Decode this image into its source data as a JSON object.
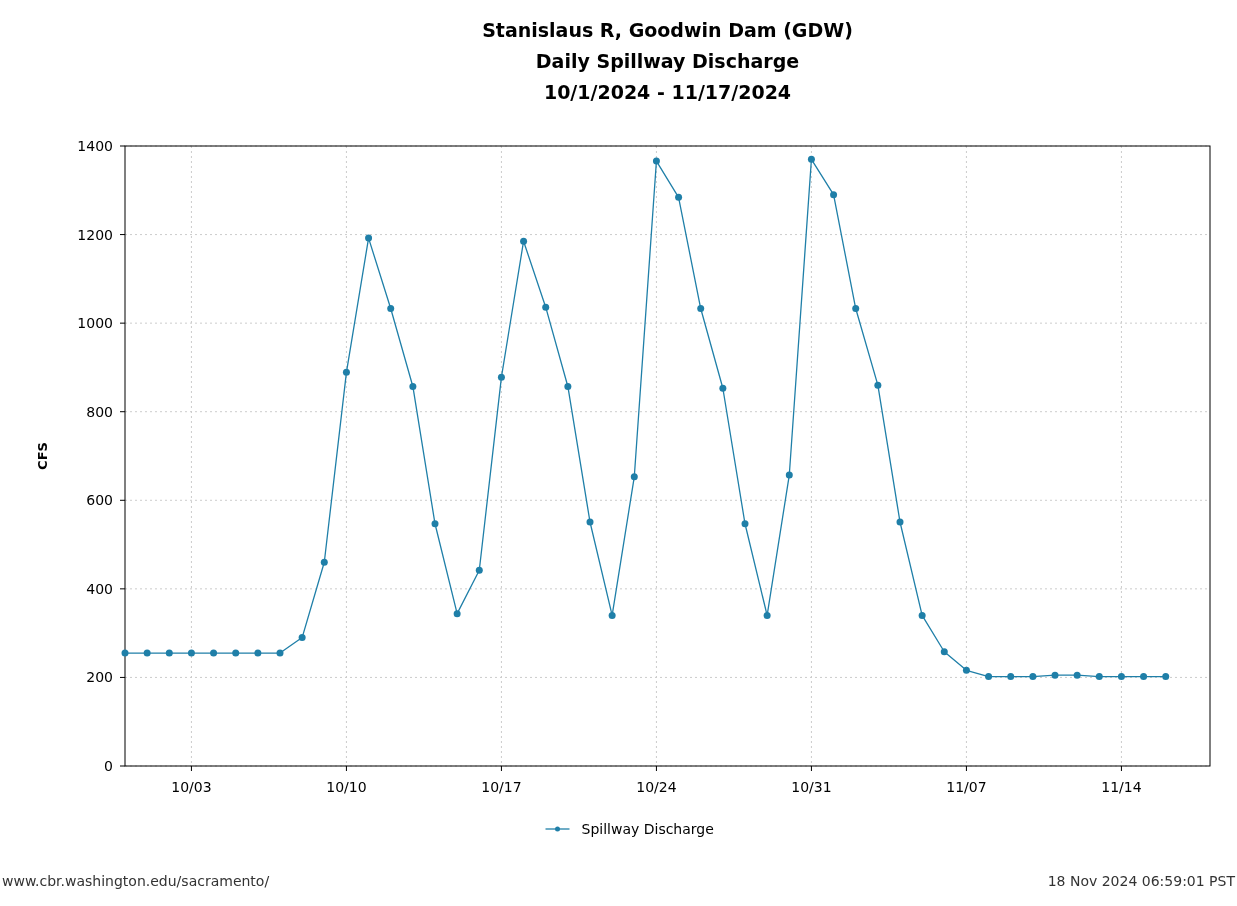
{
  "chart_data": {
    "type": "line",
    "title": "Stanislaus R, Goodwin Dam (GDW)\nDaily Spillway Discharge\n10/1/2024 - 11/17/2024",
    "ylabel": "CFS",
    "x": [
      "2024-09-30",
      "2024-10-01",
      "2024-10-02",
      "2024-10-03",
      "2024-10-04",
      "2024-10-05",
      "2024-10-06",
      "2024-10-07",
      "2024-10-08",
      "2024-10-09",
      "2024-10-10",
      "2024-10-11",
      "2024-10-12",
      "2024-10-13",
      "2024-10-14",
      "2024-10-15",
      "2024-10-16",
      "2024-10-17",
      "2024-10-18",
      "2024-10-19",
      "2024-10-20",
      "2024-10-21",
      "2024-10-22",
      "2024-10-23",
      "2024-10-24",
      "2024-10-25",
      "2024-10-26",
      "2024-10-27",
      "2024-10-28",
      "2024-10-29",
      "2024-10-30",
      "2024-10-31",
      "2024-11-01",
      "2024-11-02",
      "2024-11-03",
      "2024-11-04",
      "2024-11-05",
      "2024-11-06",
      "2024-11-07",
      "2024-11-08",
      "2024-11-09",
      "2024-11-10",
      "2024-11-11",
      "2024-11-12",
      "2024-11-13",
      "2024-11-14",
      "2024-11-15",
      "2024-11-16"
    ],
    "series": [
      {
        "name": "Spillway Discharge",
        "color": "#1f7fa8",
        "values": [
          255,
          255,
          255,
          255,
          255,
          255,
          255,
          255,
          290,
          460,
          889,
          1192,
          1033,
          857,
          547,
          344,
          442,
          878,
          1185,
          1036,
          857,
          551,
          340,
          653,
          1366,
          1284,
          1033,
          853,
          547,
          340,
          657,
          1370,
          1290,
          1033,
          860,
          551,
          340,
          258,
          216,
          202,
          202,
          202,
          205,
          205,
          202,
          202,
          202,
          202
        ]
      }
    ],
    "xlim": [
      "2024-09-30",
      "2024-11-18"
    ],
    "xticks": [
      {
        "value": "2024-10-03",
        "label": "10/03"
      },
      {
        "value": "2024-10-10",
        "label": "10/10"
      },
      {
        "value": "2024-10-17",
        "label": "10/17"
      },
      {
        "value": "2024-10-24",
        "label": "10/24"
      },
      {
        "value": "2024-10-31",
        "label": "10/31"
      },
      {
        "value": "2024-11-07",
        "label": "11/07"
      },
      {
        "value": "2024-11-14",
        "label": "11/14"
      }
    ],
    "ylim": [
      0,
      1400
    ],
    "yticks": [
      0,
      200,
      400,
      600,
      800,
      1000,
      1200,
      1400
    ],
    "grid": true,
    "legend": "bottom",
    "marker": "circle",
    "line_style": "solid",
    "annotations": [
      "www.cbr.washington.edu/sacramento/",
      "18 Nov 2024 06:59:01 PST"
    ]
  }
}
